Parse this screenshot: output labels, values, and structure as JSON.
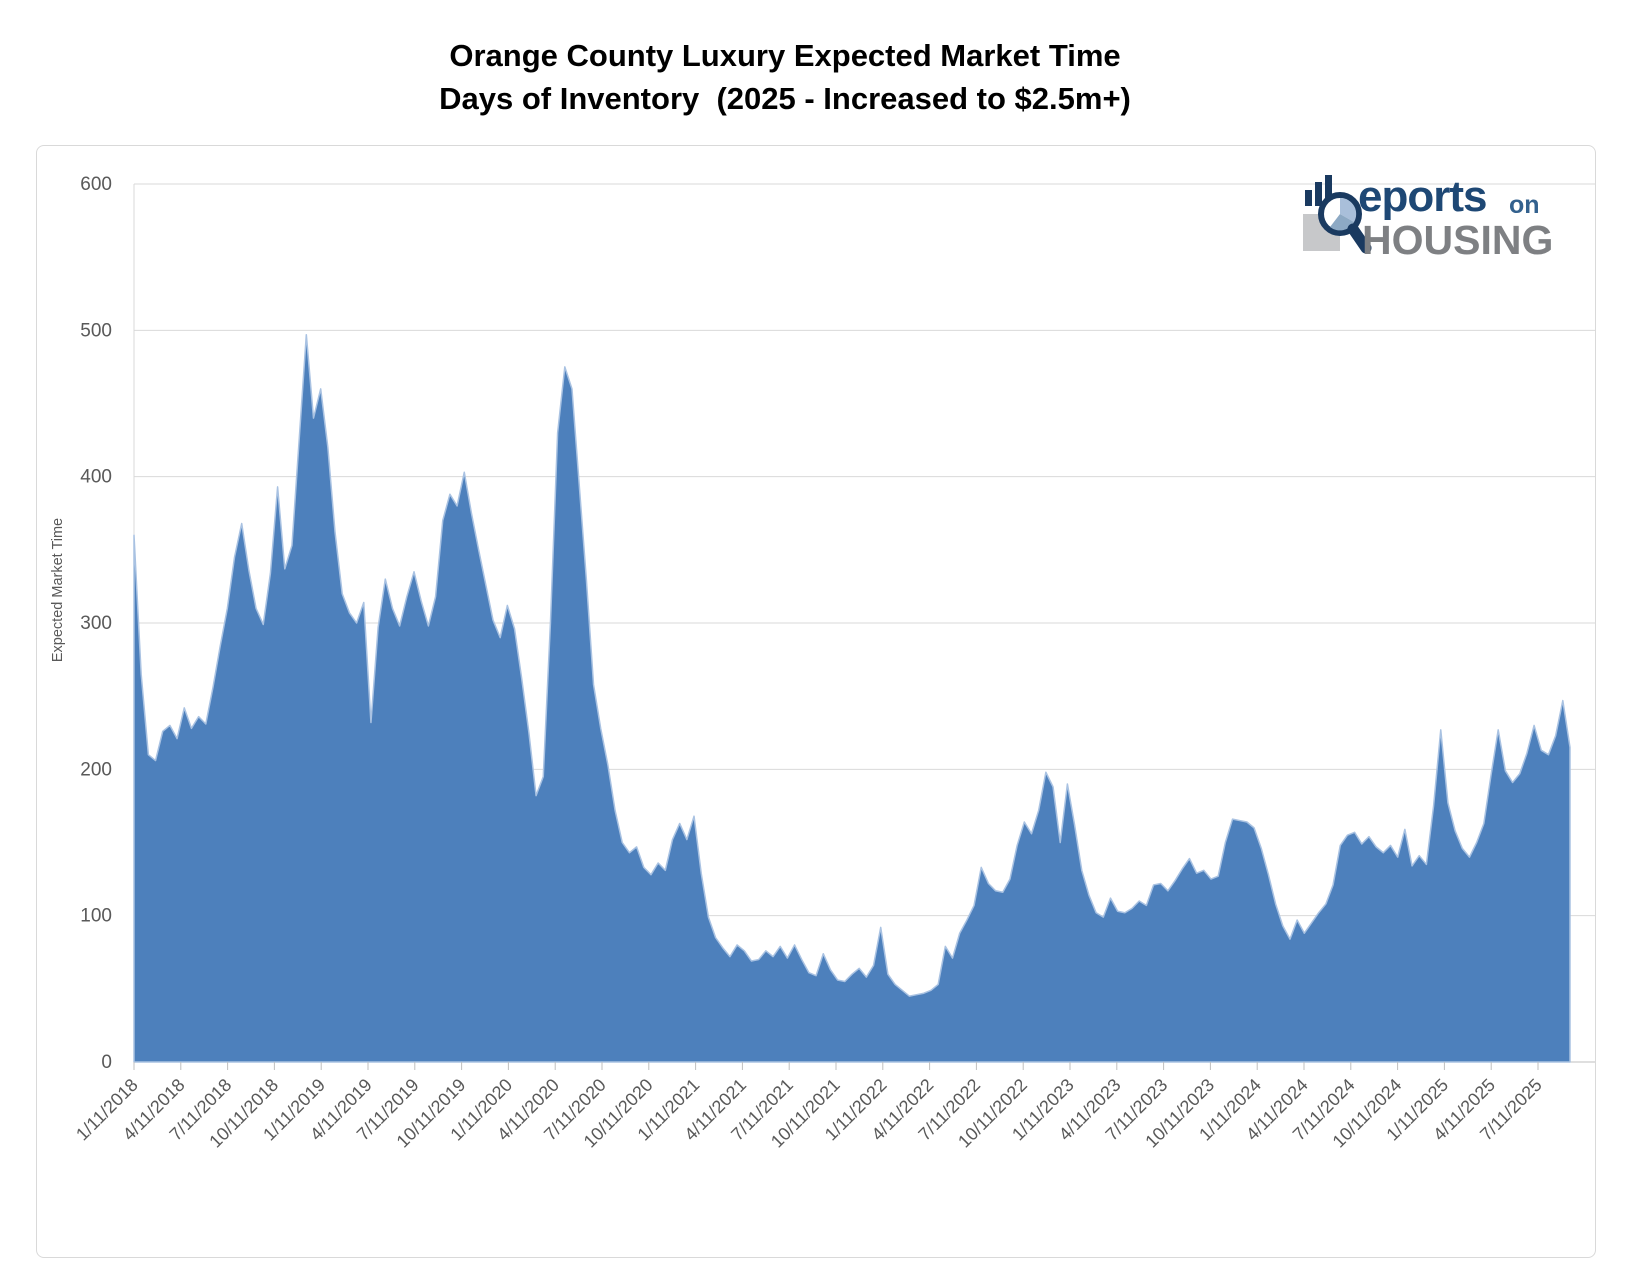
{
  "title": {
    "line1": "Orange County Luxury Expected Market Time",
    "line2": "Days of Inventory  (2025 - Increased to $2.5m+)"
  },
  "logo": {
    "reports_suffix": "eports",
    "on_label": "on",
    "housing_label": "HOUSING",
    "navy": "#1a3a60",
    "blue_text": "#1e4875",
    "gray_text": "#7e8083"
  },
  "chart_data": {
    "type": "area",
    "title": "Orange County Luxury Expected Market Time — Days of Inventory (2025 - Increased to $2.5m+)",
    "ylabel": "Expected Market Time",
    "xlabel": "",
    "ylim": [
      0,
      600
    ],
    "y_ticks": [
      0,
      100,
      200,
      300,
      400,
      500,
      600
    ],
    "grid": true,
    "legend": "none",
    "x_tick_labels": [
      "1/11/2018",
      "4/11/2018",
      "7/11/2018",
      "10/11/2018",
      "1/11/2019",
      "4/11/2019",
      "7/11/2019",
      "10/11/2019",
      "1/11/2020",
      "4/11/2020",
      "7/11/2020",
      "10/11/2020",
      "1/11/2021",
      "4/11/2021",
      "7/11/2021",
      "10/11/2021",
      "1/11/2022",
      "4/11/2022",
      "7/11/2022",
      "10/11/2022",
      "1/11/2023",
      "4/11/2023",
      "7/11/2023",
      "10/11/2023",
      "1/11/2024",
      "4/11/2024",
      "7/11/2024",
      "10/11/2024",
      "1/11/2025",
      "4/11/2025",
      "7/11/2025"
    ],
    "series_name": "Expected Market Time (days)",
    "values": [
      360,
      265,
      210,
      206,
      226,
      230,
      221,
      242,
      228,
      236,
      231,
      256,
      284,
      310,
      345,
      368,
      336,
      310,
      299,
      334,
      393,
      337,
      353,
      425,
      497,
      440,
      460,
      420,
      362,
      320,
      307,
      300,
      314,
      232,
      297,
      330,
      310,
      298,
      318,
      335,
      315,
      298,
      318,
      370,
      388,
      380,
      403,
      375,
      350,
      326,
      302,
      290,
      312,
      296,
      262,
      225,
      182,
      195,
      300,
      430,
      475,
      460,
      395,
      330,
      258,
      228,
      203,
      172,
      150,
      143,
      147,
      133,
      128,
      136,
      131,
      152,
      163,
      152,
      168,
      129,
      99,
      85,
      78,
      72,
      80,
      76,
      69,
      70,
      76,
      72,
      79,
      71,
      80,
      70,
      61,
      59,
      74,
      63,
      56,
      55,
      60,
      64,
      58,
      66,
      92,
      60,
      53,
      49,
      45,
      46,
      47,
      49,
      53,
      79,
      71,
      88,
      97,
      107,
      133,
      122,
      117,
      116,
      125,
      148,
      164,
      156,
      172,
      198,
      188,
      150,
      190,
      162,
      131,
      114,
      102,
      99,
      112,
      103,
      102,
      105,
      110,
      107,
      121,
      122,
      117,
      124,
      132,
      139,
      129,
      131,
      125,
      127,
      150,
      166,
      165,
      164,
      160,
      146,
      128,
      108,
      93,
      84,
      97,
      88,
      95,
      102,
      108,
      121,
      148,
      155,
      157,
      149,
      154,
      147,
      143,
      148,
      140,
      159,
      134,
      141,
      135,
      175,
      227,
      177,
      158,
      146,
      140,
      150,
      163,
      196,
      227,
      199,
      191,
      197,
      211,
      230,
      213,
      210,
      223,
      247,
      215
    ],
    "colors": {
      "area_fill": "#4d80bc",
      "area_border": "#a9c2e2",
      "gridline": "#d9d9d9",
      "axis_line": "#bfbfbf",
      "tick_label": "#595959"
    }
  }
}
